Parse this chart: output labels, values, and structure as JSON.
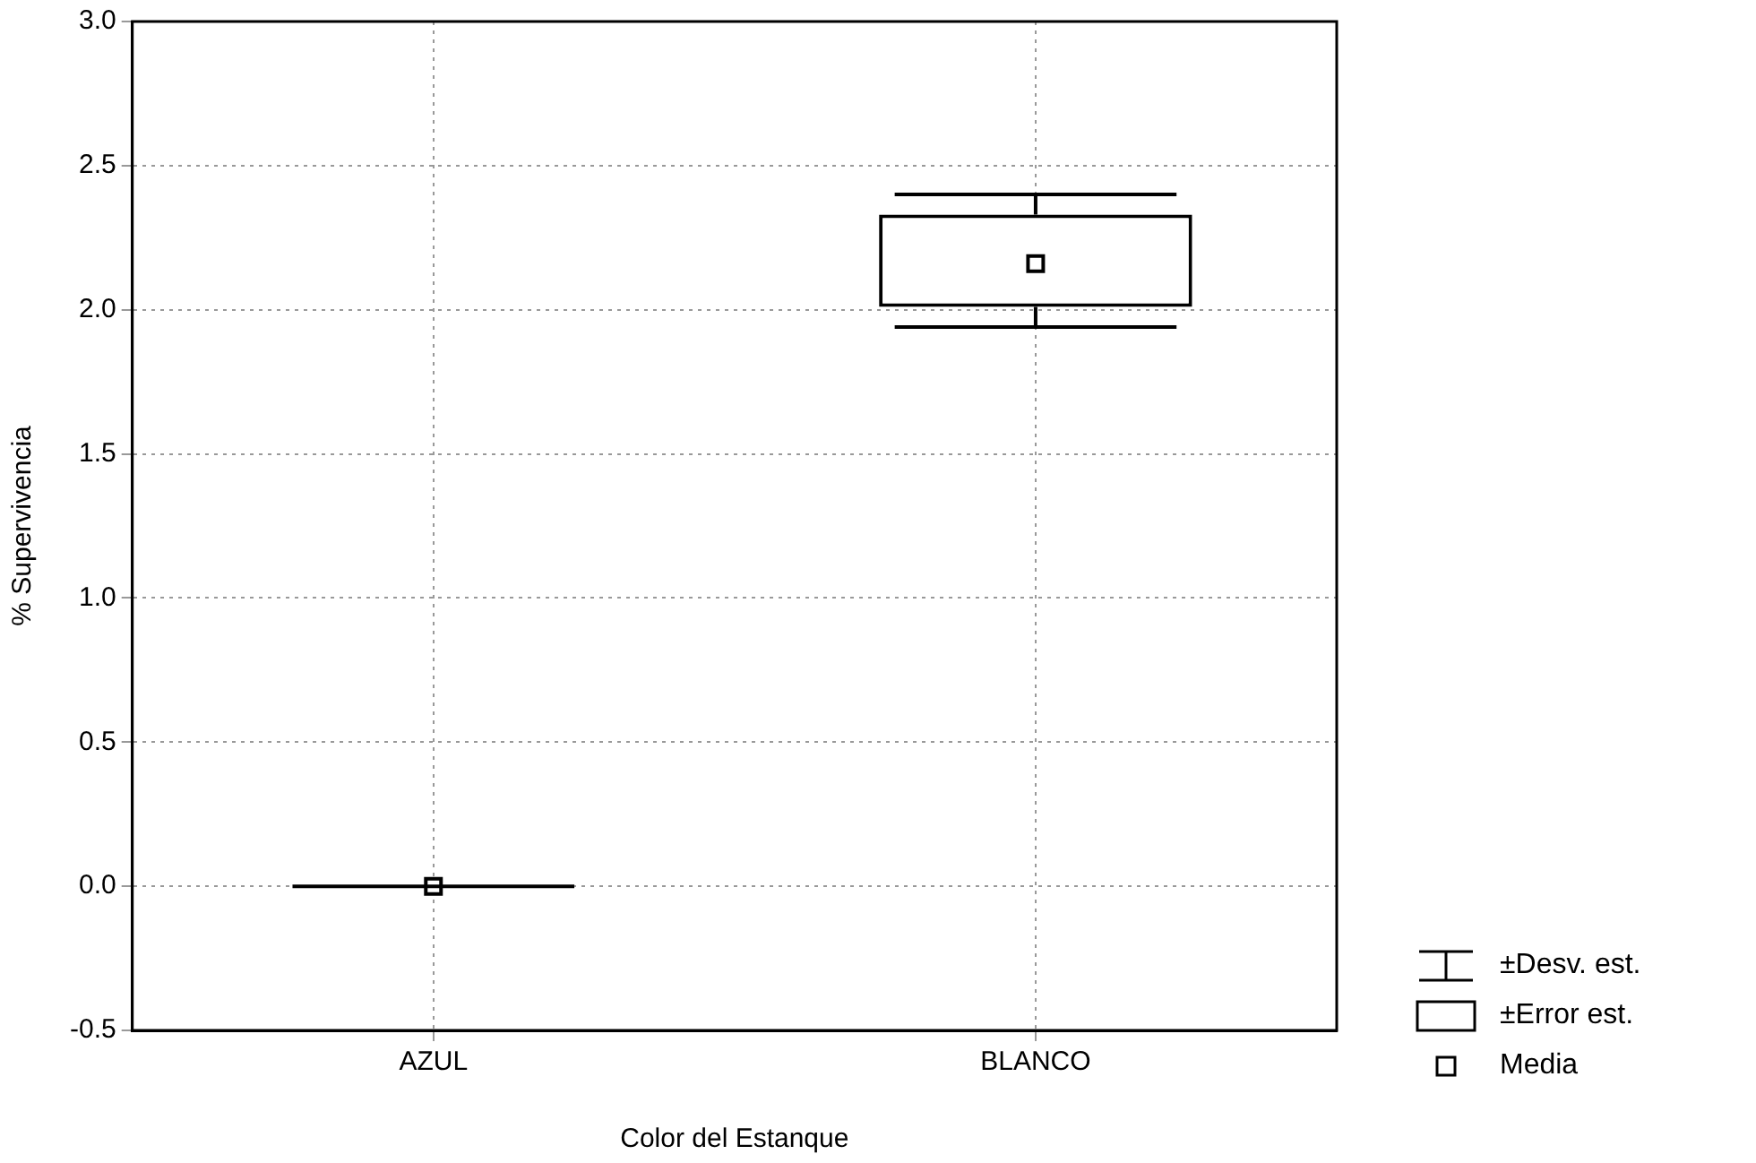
{
  "chart_data": {
    "type": "box",
    "xlabel": "Color del Estanque",
    "ylabel": "% Supervivencia",
    "categories": [
      "AZUL",
      "BLANCO"
    ],
    "boxes": [
      {
        "low": 0,
        "q1": 0,
        "q3": 0,
        "high": 0,
        "mean": 0
      },
      {
        "low": 1.94,
        "q1": 2.01,
        "q3": 2.33,
        "high": 2.4,
        "mean": 2.16
      }
    ],
    "ylim": [
      -0.5,
      3.0
    ],
    "yticks": [
      {
        "value": -0.5,
        "label": "-0.5"
      },
      {
        "value": 0,
        "label": "0.0"
      },
      {
        "value": 0.5,
        "label": "0.5"
      },
      {
        "value": 1,
        "label": "1.0"
      },
      {
        "value": 1.5,
        "label": "1.5"
      },
      {
        "value": 2,
        "label": "2.0"
      },
      {
        "value": 2.5,
        "label": "2.5"
      },
      {
        "value": 3,
        "label": "3.0"
      }
    ],
    "grid": true,
    "color": "#000000",
    "annotations": [
      "±Desv. est.",
      "±Error est.",
      "Media"
    ]
  }
}
